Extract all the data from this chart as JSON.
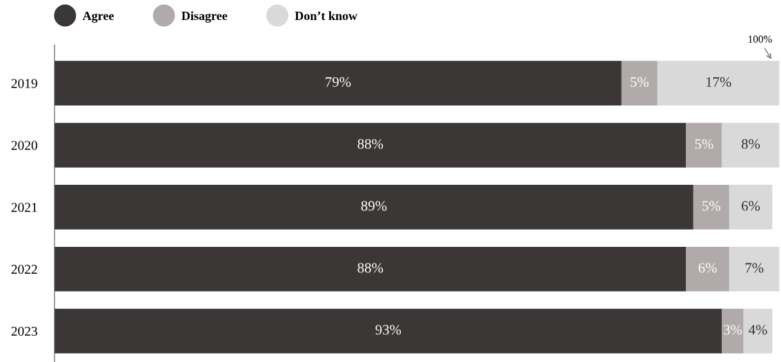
{
  "chart_data": {
    "type": "bar",
    "orientation": "horizontal",
    "stacked": true,
    "categories": [
      "2019",
      "2020",
      "2021",
      "2022",
      "2023"
    ],
    "series": [
      {
        "name": "Agree",
        "color": "#3a3736",
        "values": [
          79,
          88,
          89,
          88,
          93
        ],
        "value_labels": [
          "79%",
          "88%",
          "89%",
          "88%",
          "93%"
        ]
      },
      {
        "name": "Disagree",
        "color": "#b0abaa",
        "values": [
          5,
          5,
          5,
          6,
          3
        ],
        "value_labels": [
          "5%",
          "5%",
          "5%",
          "6%",
          "3%"
        ]
      },
      {
        "name": "Don’t know",
        "color": "#d9d9d9",
        "values": [
          17,
          8,
          6,
          7,
          4
        ],
        "value_labels": [
          "17%",
          "8%",
          "6%",
          "7%",
          "4%"
        ]
      }
    ],
    "legend": "top left",
    "tick_labels": "y",
    "grid": false,
    "annotations": [
      {
        "text": "100%",
        "x": 100
      }
    ]
  }
}
